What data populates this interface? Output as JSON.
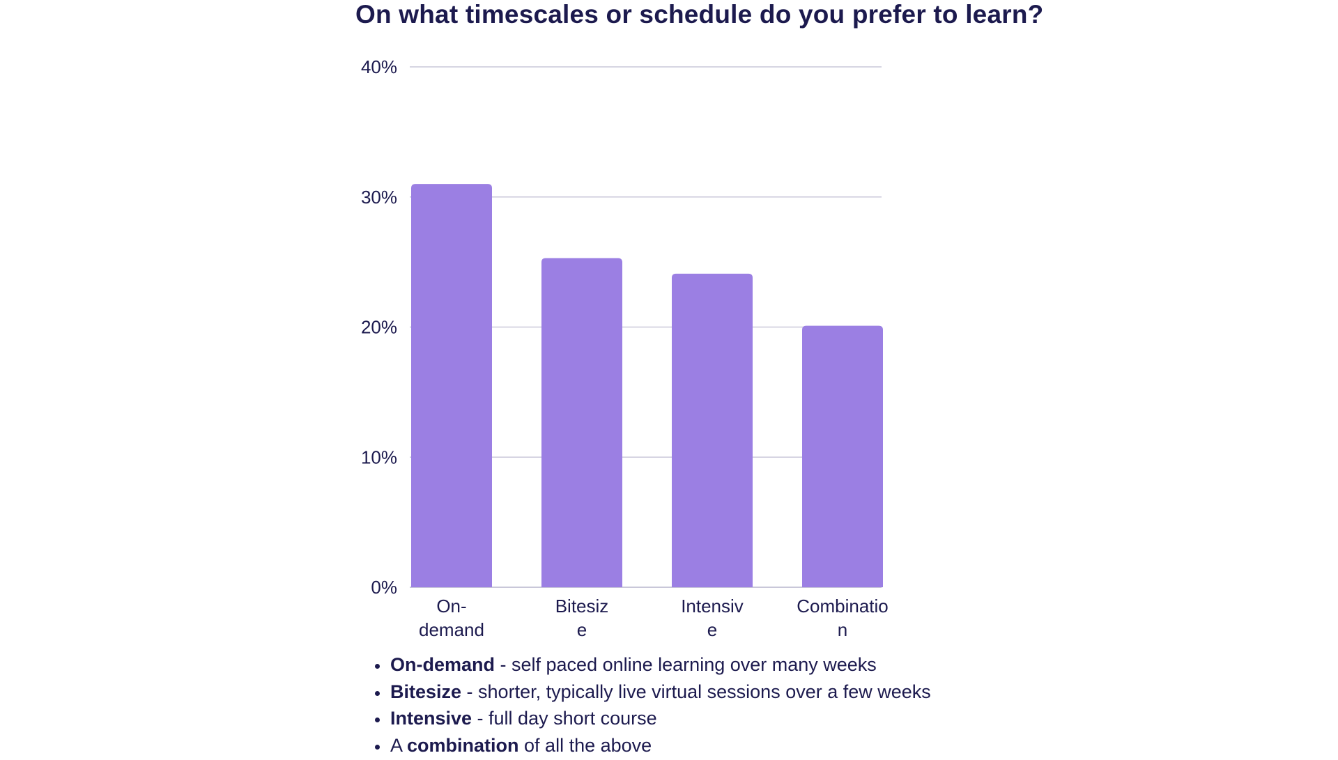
{
  "chart_data": {
    "type": "bar",
    "title": "On what timescales or schedule do you prefer to learn?",
    "categories": [
      [
        "On-",
        "demand"
      ],
      [
        "Bitesiz",
        "e"
      ],
      [
        "Intensiv",
        "e"
      ],
      [
        "Combinatio",
        "n"
      ]
    ],
    "values": [
      31,
      25.3,
      24.1,
      20.1
    ],
    "y_ticks": [
      "0%",
      "10%",
      "20%",
      "30%",
      "40%"
    ],
    "ylim": [
      0,
      40
    ],
    "xlabel": "",
    "ylabel": "",
    "grid": true,
    "legend": false,
    "bar_color": "#9b7fe3",
    "grid_color": "#c9c7d9",
    "text_color": "#1c1a4e"
  },
  "notes": [
    {
      "before": "",
      "term": "On-demand",
      "after": " - self paced online learning over many weeks"
    },
    {
      "before": "",
      "term": "Bitesize",
      "after": " - shorter, typically live virtual sessions over a few weeks"
    },
    {
      "before": "",
      "term": "Intensive",
      "after": " - full day short course"
    },
    {
      "before": "A ",
      "term": "combination",
      "after": " of all the above"
    }
  ]
}
